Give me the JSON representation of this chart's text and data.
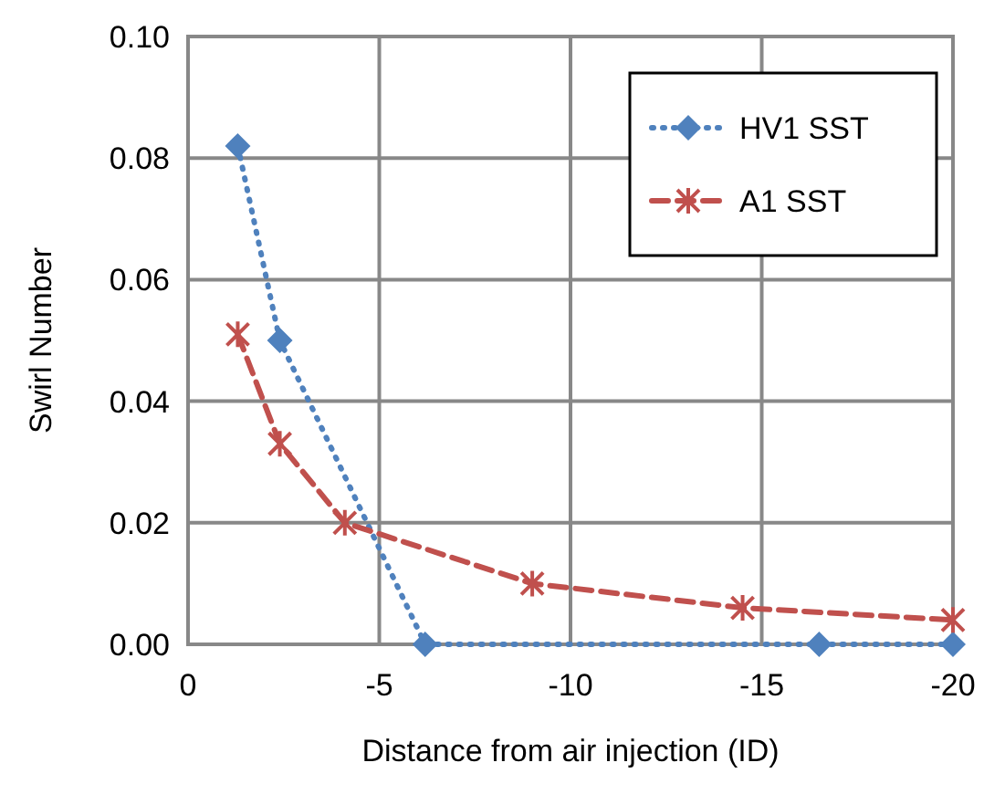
{
  "chart_data": {
    "type": "line",
    "xlabel": "Distance from air injection (ID)",
    "ylabel": "Swirl Number",
    "xlim": [
      0,
      -20
    ],
    "xticks": [
      0,
      -5,
      -10,
      -15,
      -20
    ],
    "ylim": [
      0,
      0.1
    ],
    "yticks": [
      {
        "value": 0,
        "label": "0.00"
      },
      {
        "value": 0.02,
        "label": "0.02"
      },
      {
        "value": 0.04,
        "label": "0.04"
      },
      {
        "value": 0.06,
        "label": "0.06"
      },
      {
        "value": 0.08,
        "label": "0.08"
      },
      {
        "value": 0.1,
        "label": "0.10"
      }
    ],
    "grid": true,
    "legend": "top right",
    "series": [
      {
        "name": "HV1 SST",
        "color": "#4f81bd",
        "marker": "diamond",
        "line_style": "dotted",
        "x": [
          -1.3,
          -2.4,
          -6.2,
          -16.5,
          -20
        ],
        "values": [
          0.082,
          0.05,
          0,
          0,
          0
        ]
      },
      {
        "name": "A1 SST",
        "color": "#c0504d",
        "marker": "cross",
        "line_style": "dashed",
        "x": [
          -1.3,
          -2.4,
          -4.1,
          -9,
          -14.5,
          -20
        ],
        "values": [
          0.051,
          0.033,
          0.02,
          0.01,
          0.006,
          0.004
        ]
      }
    ]
  }
}
